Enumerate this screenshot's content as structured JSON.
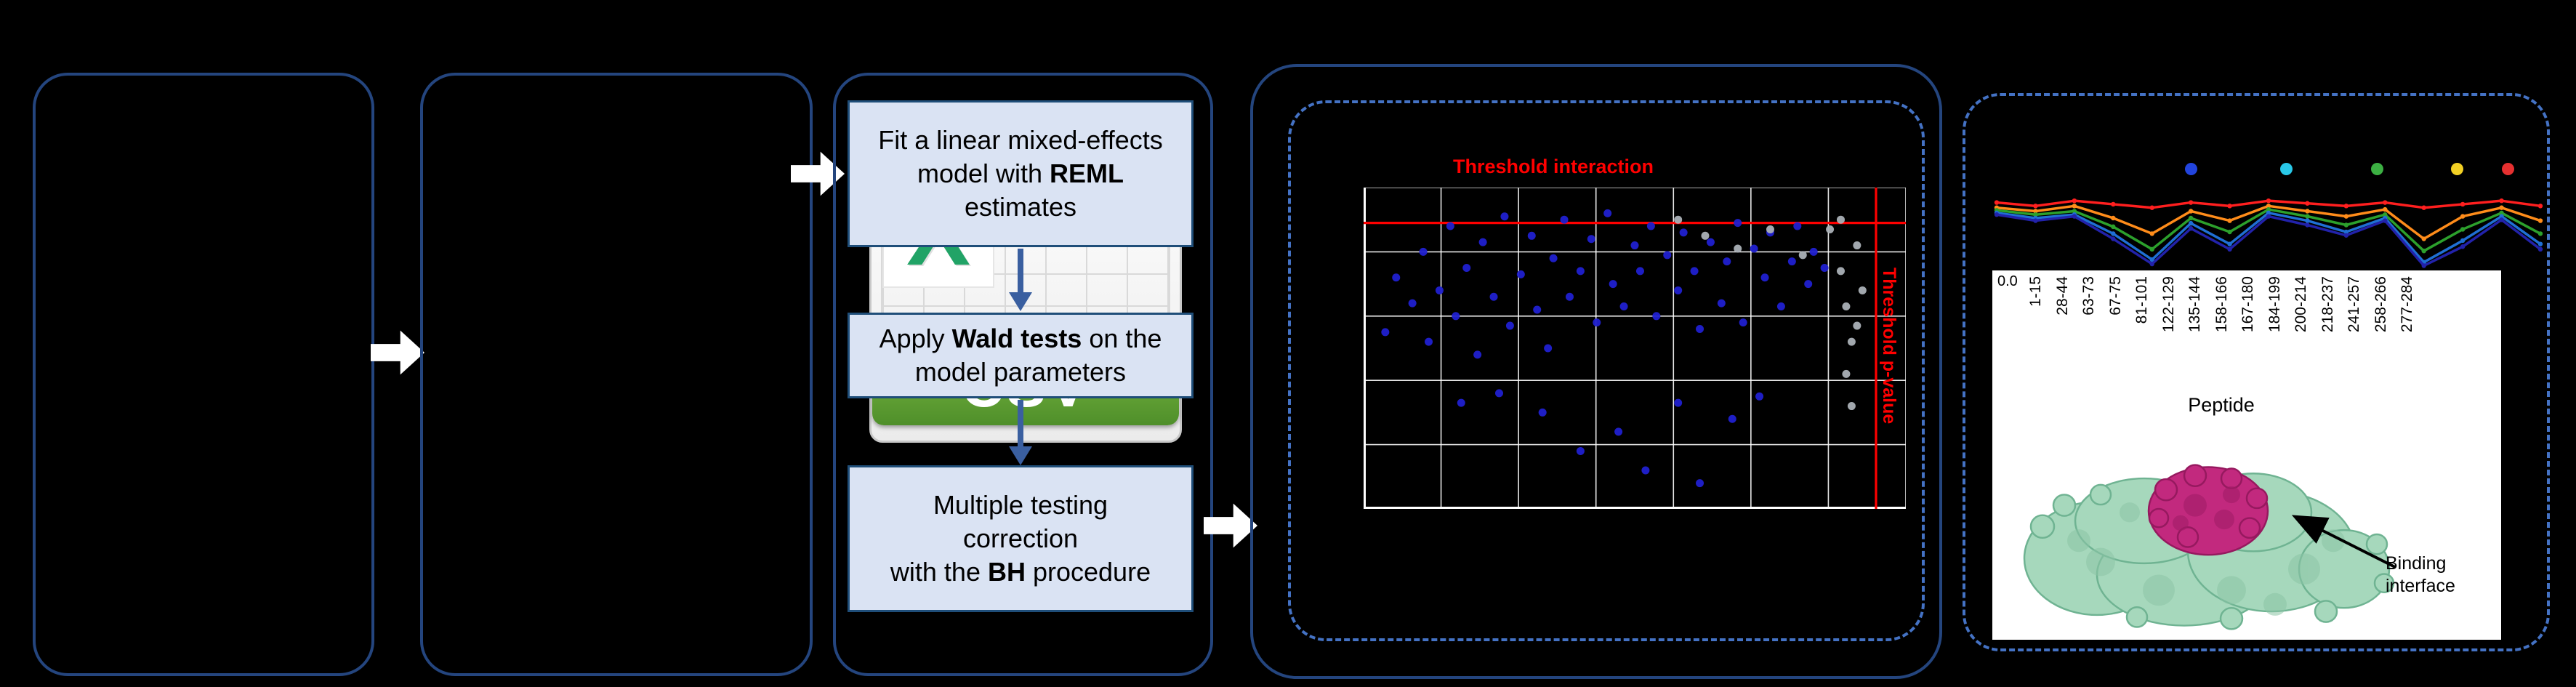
{
  "csv": {
    "x_letter": "X",
    "label": "CSV",
    "x_color": "#21A366",
    "banner_top": "#7CBA43",
    "banner_bottom": "#4F8F2A"
  },
  "flow": {
    "steps": [
      {
        "parts": [
          "Fit a linear mixed-effects model with ",
          "REML",
          " estimates"
        ]
      },
      {
        "parts": [
          "Apply ",
          "Wald tests",
          " on the model parameters"
        ]
      },
      {
        "lines": [
          "Multiple testing",
          "correction"
        ],
        "parts": [
          "with the ",
          "BH",
          " procedure"
        ]
      }
    ]
  },
  "panel5": {
    "binding_label": "Binding interface"
  },
  "chart_data": [
    {
      "id": "threshold-scatter",
      "type": "scatter",
      "grid": true,
      "xlim": [
        0,
        100
      ],
      "ylim": [
        0,
        100
      ],
      "annotations": {
        "top": "Threshold interaction",
        "right": "Threshold p-value"
      },
      "threshold_lines": {
        "horizontal_y": 89,
        "vertical_x": 94.5,
        "color": "#FF0000"
      },
      "series": [
        {
          "name": "significant-peptides",
          "color": "#2020D0",
          "points": [
            [
              4,
              55
            ],
            [
              6,
              72
            ],
            [
              9,
              64
            ],
            [
              11,
              80
            ],
            [
              12,
              52
            ],
            [
              14,
              68
            ],
            [
              16,
              88
            ],
            [
              17,
              60
            ],
            [
              19,
              75
            ],
            [
              21,
              48
            ],
            [
              22,
              83
            ],
            [
              24,
              66
            ],
            [
              26,
              91
            ],
            [
              27,
              57
            ],
            [
              29,
              73
            ],
            [
              31,
              85
            ],
            [
              32,
              62
            ],
            [
              34,
              50
            ],
            [
              35,
              78
            ],
            [
              37,
              90
            ],
            [
              38,
              66
            ],
            [
              40,
              74
            ],
            [
              42,
              84
            ],
            [
              43,
              58
            ],
            [
              45,
              92
            ],
            [
              46,
              70
            ],
            [
              48,
              63
            ],
            [
              50,
              82
            ],
            [
              51,
              74
            ],
            [
              53,
              88
            ],
            [
              54,
              60
            ],
            [
              56,
              79
            ],
            [
              58,
              68
            ],
            [
              59,
              86
            ],
            [
              61,
              74
            ],
            [
              62,
              56
            ],
            [
              64,
              83
            ],
            [
              66,
              64
            ],
            [
              67,
              77
            ],
            [
              69,
              89
            ],
            [
              70,
              58
            ],
            [
              72,
              81
            ],
            [
              74,
              72
            ],
            [
              75,
              86
            ],
            [
              77,
              63
            ],
            [
              79,
              77
            ],
            [
              80,
              88
            ],
            [
              82,
              70
            ],
            [
              83,
              80
            ],
            [
              85,
              75
            ],
            [
              33,
              30
            ],
            [
              47,
              24
            ],
            [
              58,
              33
            ],
            [
              25,
              36
            ],
            [
              68,
              28
            ],
            [
              18,
              33
            ],
            [
              52,
              12
            ],
            [
              40,
              18
            ],
            [
              73,
              35
            ],
            [
              62,
              8
            ]
          ]
        },
        {
          "name": "non-significant-peptides",
          "color": "#AAB0B6",
          "points": [
            [
              58,
              90
            ],
            [
              63,
              85
            ],
            [
              69,
              81
            ],
            [
              75,
              87
            ],
            [
              81,
              79
            ],
            [
              86,
              87
            ],
            [
              88,
              74
            ],
            [
              89,
              63
            ],
            [
              90,
              52
            ],
            [
              89,
              42
            ],
            [
              90,
              32
            ],
            [
              91,
              82
            ],
            [
              92,
              68
            ],
            [
              88,
              90
            ],
            [
              91,
              57
            ]
          ]
        }
      ]
    },
    {
      "id": "uptake-per-peptide",
      "type": "line",
      "categories": [
        "1-15",
        "28-44",
        "63-73",
        "67-75",
        "81-101",
        "122-129",
        "135-144",
        "158-166",
        "167-180",
        "184-199",
        "200-214",
        "218-237",
        "241-257",
        "258-266",
        "277-284"
      ],
      "xlabel": "Peptide",
      "ytick_label": "0.0",
      "ylim": [
        0,
        1
      ],
      "legend_dots": [
        "#2244DD",
        "#29C8E8",
        "#3CB043",
        "#F2D024",
        "#E63030"
      ],
      "series": [
        {
          "name": "red",
          "color": "#FF1F1F",
          "values": [
            0.76,
            0.72,
            0.78,
            0.74,
            0.7,
            0.76,
            0.72,
            0.78,
            0.75,
            0.72,
            0.76,
            0.7,
            0.74,
            0.78,
            0.72
          ]
        },
        {
          "name": "orange",
          "color": "#FF8C1A",
          "values": [
            0.7,
            0.66,
            0.72,
            0.58,
            0.4,
            0.66,
            0.55,
            0.72,
            0.66,
            0.6,
            0.68,
            0.34,
            0.6,
            0.7,
            0.55
          ]
        },
        {
          "name": "green",
          "color": "#2CA02C",
          "values": [
            0.67,
            0.62,
            0.66,
            0.48,
            0.22,
            0.58,
            0.42,
            0.68,
            0.6,
            0.5,
            0.62,
            0.2,
            0.45,
            0.64,
            0.4
          ]
        },
        {
          "name": "blue",
          "color": "#1F6FD4",
          "values": [
            0.64,
            0.58,
            0.62,
            0.4,
            0.1,
            0.52,
            0.28,
            0.64,
            0.55,
            0.42,
            0.58,
            0.07,
            0.32,
            0.6,
            0.28
          ]
        },
        {
          "name": "dark-blue",
          "color": "#2222AA",
          "values": [
            0.62,
            0.55,
            0.6,
            0.34,
            0.05,
            0.46,
            0.22,
            0.6,
            0.5,
            0.38,
            0.55,
            0.03,
            0.25,
            0.56,
            0.22
          ]
        }
      ]
    }
  ]
}
